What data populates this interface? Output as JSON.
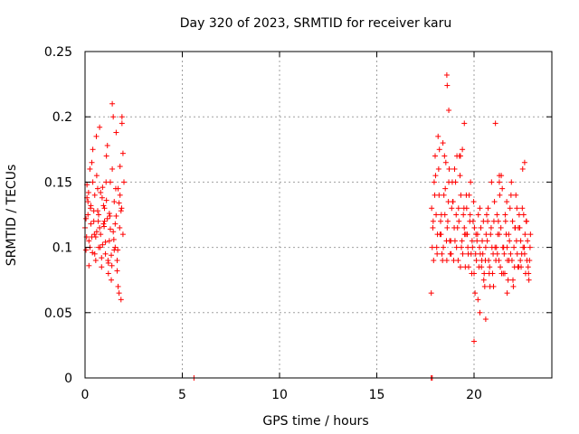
{
  "chart_data": {
    "type": "scatter",
    "title": "Day 320 of 2023, SRMTID for receiver karu",
    "xlabel": "GPS time / hours",
    "ylabel": "SRMTID / TECUs",
    "xlim": [
      0,
      24
    ],
    "ylim": [
      0,
      0.25
    ],
    "x_ticks": [
      0,
      5,
      10,
      15,
      20
    ],
    "x_tick_labels": [
      "0",
      "5",
      "10",
      "15",
      "20"
    ],
    "y_ticks": [
      0,
      0.05,
      0.1,
      0.15,
      0.2,
      0.25
    ],
    "y_tick_labels": [
      "0",
      "0.05",
      "0.1",
      "0.15",
      "0.2",
      "0.25"
    ],
    "grid": true,
    "marker": "+",
    "series": [
      {
        "name": "SRMTID",
        "color": "#ff0000",
        "x": [
          0.0,
          0.05,
          0.1,
          0.15,
          0.2,
          0.25,
          0.3,
          0.35,
          0.4,
          0.45,
          0.5,
          0.55,
          0.6,
          0.65,
          0.7,
          0.75,
          0.8,
          0.85,
          0.9,
          0.95,
          1.0,
          1.05,
          1.1,
          1.15,
          1.2,
          1.25,
          1.3,
          1.35,
          1.4,
          1.45,
          1.5,
          1.55,
          1.6,
          1.65,
          1.7,
          1.75,
          1.8,
          1.85,
          1.9,
          1.95,
          2.0,
          0.1,
          0.2,
          0.3,
          0.4,
          0.5,
          0.6,
          0.7,
          0.8,
          0.9,
          1.0,
          1.1,
          1.2,
          1.3,
          1.4,
          1.5,
          1.6,
          1.7,
          1.8,
          1.9,
          0.05,
          0.15,
          0.25,
          0.35,
          0.45,
          0.55,
          0.65,
          0.75,
          0.85,
          0.95,
          1.05,
          1.15,
          1.25,
          1.35,
          1.45,
          1.55,
          1.65,
          1.75,
          1.85,
          1.95,
          0.08,
          0.18,
          0.28,
          0.38,
          0.48,
          0.58,
          0.68,
          0.78,
          0.88,
          0.98,
          1.08,
          1.18,
          1.28,
          1.38,
          1.48,
          1.58,
          1.68,
          1.78,
          1.88,
          5.6,
          17.8,
          17.85,
          17.8,
          17.9,
          18.0,
          18.1,
          18.2,
          18.3,
          18.4,
          18.5,
          18.6,
          18.7,
          18.8,
          18.9,
          19.0,
          19.1,
          19.2,
          19.3,
          19.4,
          19.5,
          19.6,
          19.7,
          19.8,
          19.9,
          20.0,
          20.1,
          20.2,
          20.3,
          20.4,
          20.5,
          20.6,
          20.7,
          20.8,
          20.9,
          21.0,
          21.1,
          21.2,
          21.3,
          21.4,
          21.5,
          21.6,
          21.7,
          21.8,
          21.9,
          22.0,
          22.1,
          22.2,
          22.3,
          22.4,
          22.5,
          22.6,
          22.7,
          22.8,
          22.9,
          17.85,
          17.95,
          18.05,
          18.15,
          18.25,
          18.35,
          18.45,
          18.55,
          18.65,
          18.75,
          18.85,
          18.95,
          19.05,
          19.15,
          19.25,
          19.35,
          19.45,
          19.55,
          19.65,
          19.75,
          19.85,
          19.95,
          20.05,
          20.15,
          20.25,
          20.35,
          20.45,
          20.55,
          20.65,
          20.75,
          20.85,
          20.95,
          21.05,
          21.15,
          21.25,
          21.35,
          21.45,
          21.55,
          21.65,
          21.75,
          21.85,
          21.95,
          22.05,
          22.15,
          22.25,
          22.35,
          22.45,
          22.55,
          22.65,
          22.75,
          22.85,
          17.82,
          17.92,
          18.02,
          18.12,
          18.22,
          18.32,
          18.42,
          18.52,
          18.62,
          18.72,
          18.82,
          18.92,
          19.02,
          19.12,
          19.22,
          19.32,
          19.42,
          19.52,
          19.62,
          19.72,
          19.82,
          19.92,
          20.02,
          20.12,
          20.22,
          20.32,
          20.42,
          20.52,
          20.62,
          20.72,
          20.82,
          20.92,
          21.02,
          21.12,
          21.22,
          21.32,
          21.42,
          21.52,
          21.62,
          21.72,
          21.82,
          21.92,
          22.02,
          22.12,
          22.22,
          22.32,
          22.42,
          22.52,
          22.62,
          22.72,
          22.82,
          17.88,
          17.98,
          18.08,
          18.18,
          18.28,
          18.38,
          18.48,
          18.58,
          18.68,
          18.78,
          18.88,
          18.98,
          19.08,
          19.18,
          19.28,
          19.38,
          19.48,
          19.58,
          19.68,
          19.78,
          19.88,
          19.98,
          20.08,
          20.18,
          20.28,
          20.38,
          20.48,
          20.58,
          20.68,
          20.78,
          20.88,
          20.98,
          21.08,
          21.18,
          21.28,
          21.38,
          21.48,
          21.58,
          21.68,
          21.78,
          21.88,
          21.98,
          22.08,
          22.18,
          22.28,
          22.38,
          22.48,
          22.58,
          22.68,
          22.78,
          22.88,
          18.6,
          18.62,
          18.7,
          19.3,
          19.5,
          20.0,
          20.3,
          20.6,
          21.3,
          21.3,
          21.7,
          22.6
        ],
        "y": [
          0.115,
          0.098,
          0.148,
          0.125,
          0.086,
          0.16,
          0.132,
          0.108,
          0.175,
          0.12,
          0.14,
          0.09,
          0.155,
          0.128,
          0.1,
          0.192,
          0.11,
          0.085,
          0.146,
          0.118,
          0.13,
          0.095,
          0.17,
          0.122,
          0.08,
          0.105,
          0.15,
          0.075,
          0.21,
          0.112,
          0.135,
          0.1,
          0.188,
          0.09,
          0.145,
          0.065,
          0.162,
          0.128,
          0.195,
          0.11,
          0.15,
          0.138,
          0.105,
          0.118,
          0.15,
          0.095,
          0.112,
          0.125,
          0.142,
          0.102,
          0.12,
          0.136,
          0.088,
          0.114,
          0.16,
          0.098,
          0.124,
          0.07,
          0.14,
          0.2,
          0.122,
          0.135,
          0.1,
          0.165,
          0.128,
          0.108,
          0.145,
          0.115,
          0.092,
          0.132,
          0.104,
          0.178,
          0.126,
          0.094,
          0.2,
          0.118,
          0.082,
          0.134,
          0.06,
          0.172,
          0.108,
          0.142,
          0.13,
          0.096,
          0.11,
          0.185,
          0.12,
          0.1,
          0.138,
          0.116,
          0.15,
          0.09,
          0.124,
          0.086,
          0.106,
          0.145,
          0.098,
          0.115,
          0.13,
          0.0,
          0.0,
          0.0,
          0.065,
          0.12,
          0.17,
          0.095,
          0.14,
          0.11,
          0.18,
          0.125,
          0.09,
          0.15,
          0.105,
          0.135,
          0.16,
          0.1,
          0.13,
          0.085,
          0.175,
          0.115,
          0.14,
          0.095,
          0.125,
          0.105,
          0.08,
          0.11,
          0.06,
          0.13,
          0.09,
          0.075,
          0.1,
          0.12,
          0.085,
          0.15,
          0.07,
          0.195,
          0.095,
          0.11,
          0.155,
          0.08,
          0.125,
          0.1,
          0.09,
          0.14,
          0.075,
          0.115,
          0.13,
          0.085,
          0.105,
          0.16,
          0.095,
          0.12,
          0.08,
          0.11,
          0.1,
          0.15,
          0.125,
          0.185,
          0.11,
          0.095,
          0.14,
          0.165,
          0.12,
          0.105,
          0.13,
          0.09,
          0.15,
          0.115,
          0.17,
          0.1,
          0.125,
          0.085,
          0.11,
          0.14,
          0.095,
          0.12,
          0.065,
          0.105,
          0.085,
          0.115,
          0.095,
          0.07,
          0.125,
          0.09,
          0.11,
          0.08,
          0.135,
          0.1,
          0.12,
          0.085,
          0.145,
          0.095,
          0.11,
          0.075,
          0.13,
          0.09,
          0.1,
          0.14,
          0.085,
          0.115,
          0.095,
          0.125,
          0.08,
          0.105,
          0.09,
          0.13,
          0.09,
          0.155,
          0.11,
          0.175,
          0.125,
          0.1,
          0.145,
          0.115,
          0.16,
          0.095,
          0.135,
          0.105,
          0.17,
          0.12,
          0.14,
          0.095,
          0.11,
          0.13,
          0.085,
          0.15,
          0.1,
          0.115,
          0.09,
          0.125,
          0.095,
          0.105,
          0.08,
          0.11,
          0.13,
          0.07,
          0.1,
          0.12,
          0.09,
          0.11,
          0.14,
          0.08,
          0.1,
          0.12,
          0.09,
          0.105,
          0.15,
          0.07,
          0.115,
          0.095,
          0.125,
          0.085,
          0.1,
          0.11,
          0.09,
          0.075,
          0.115,
          0.14,
          0.1,
          0.16,
          0.12,
          0.09,
          0.17,
          0.105,
          0.135,
          0.095,
          0.15,
          0.115,
          0.125,
          0.09,
          0.155,
          0.105,
          0.13,
          0.11,
          0.1,
          0.12,
          0.08,
          0.135,
          0.095,
          0.11,
          0.1,
          0.085,
          0.12,
          0.09,
          0.105,
          0.08,
          0.115,
          0.095,
          0.1,
          0.125,
          0.09,
          0.115,
          0.1,
          0.08,
          0.135,
          0.11,
          0.095,
          0.12,
          0.085,
          0.105,
          0.115,
          0.09,
          0.13,
          0.1,
          0.12,
          0.085,
          0.1,
          0.232,
          0.224,
          0.205,
          0.17,
          0.195,
          0.028,
          0.05,
          0.045,
          0.155,
          0.15,
          0.065,
          0.165
        ]
      }
    ]
  }
}
